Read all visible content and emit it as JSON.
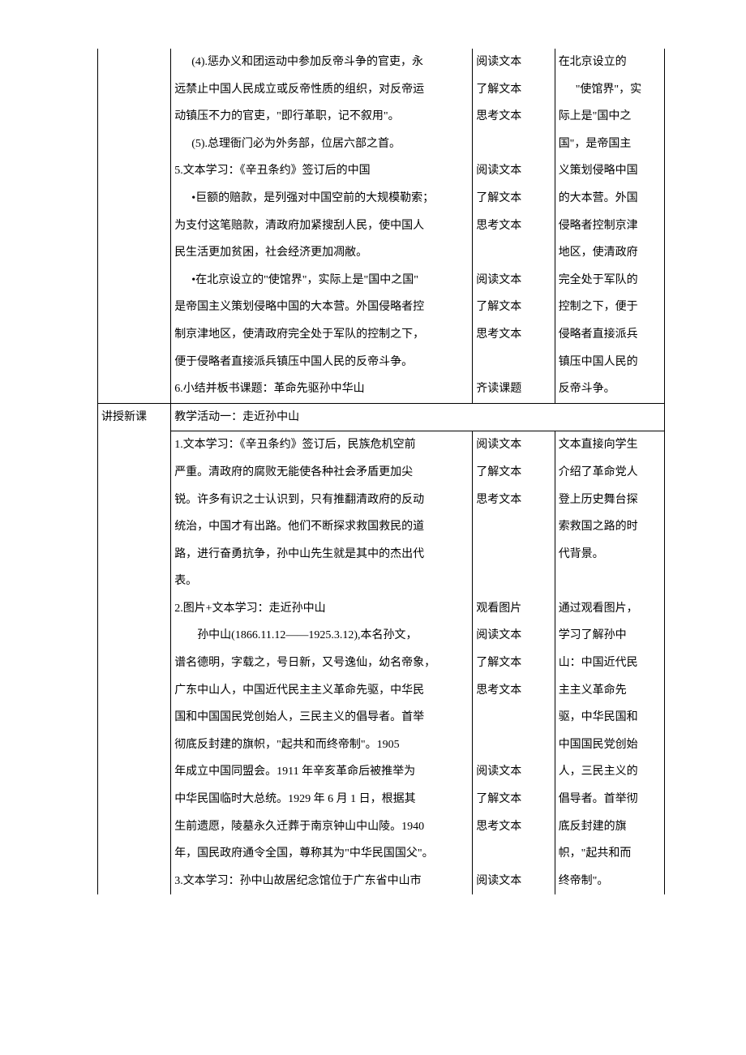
{
  "table": {
    "row1": {
      "col1": "",
      "col2_lines": [
        {
          "text": "(4).惩办义和团运动中参加反帝斗争的官吏，永",
          "cls": "indent1"
        },
        {
          "text": "远禁止中国人民成立或反帝性质的组织，对反帝运"
        },
        {
          "text": "动镇压不力的官吏，\"即行革职，记不叙用\"。"
        },
        {
          "text": "(5).总理衙门必为外务部，位居六部之首。",
          "cls": "indent1"
        },
        {
          "text": "5.文本学习：《辛丑条约》签订后的中国"
        },
        {
          "text": "•巨额的赔款，是列强对中国空前的大规模勒索；",
          "cls": "indent1"
        },
        {
          "text": "为支付这笔赔款，清政府加紧搜刮人民，使中国人"
        },
        {
          "text": "民生活更加贫困，社会经济更加凋敝。"
        },
        {
          "text": "•在北京设立的\"使馆界\"，实际上是\"国中之国\"",
          "cls": "indent1"
        },
        {
          "text": "是帝国主义策划侵略中国的大本营。外国侵略者控"
        },
        {
          "text": "制京津地区，使清政府完全处于军队的控制之下，"
        },
        {
          "text": "便于侵略者直接派兵镇压中国人民的反帝斗争。"
        },
        {
          "text": "6.小结并板书课题：革命先驱孙中华山"
        }
      ],
      "col3_lines": [
        "阅读文本",
        "了解文本",
        "思考文本",
        "",
        "阅读文本",
        "了解文本",
        "思考文本",
        "",
        "阅读文本",
        "了解文本",
        "思考文本",
        "",
        "齐读课题"
      ],
      "col4_lines": [
        "在北京设立的",
        "\"使馆界\"，实",
        "际上是\"国中之",
        "国\"，是帝国主",
        "义策划侵略中国",
        "的大本营。外国",
        "侵略者控制京津",
        "地区，使清政府",
        "完全处于军队的",
        "控制之下，便于",
        "侵略者直接派兵",
        "镇压中国人民的",
        "反帝斗争。"
      ]
    },
    "row2": {
      "col1": "讲授新课",
      "col2": "教学活动一：走近孙中山"
    },
    "row3": {
      "col1": "",
      "col2_lines": [
        {
          "text": "1.文本学习：《辛丑条约》签订后，民族危机空前"
        },
        {
          "text": "严重。清政府的腐败无能使各种社会矛盾更加尖"
        },
        {
          "text": "锐。许多有识之士认识到，只有推翻清政府的反动"
        },
        {
          "text": "统治，中国才有出路。他们不断探求救国救民的道"
        },
        {
          "text": "路，进行奋勇抗争，孙中山先生就是其中的杰出代"
        },
        {
          "text": "表。"
        },
        {
          "text": "2.图片+文本学习：走近孙中山"
        },
        {
          "text": "孙中山(1866.11.12——1925.3.12),本名孙文，",
          "cls": "indent"
        },
        {
          "text": "谱名德明，字载之，号日新，又号逸仙，幼名帝象，"
        },
        {
          "text": "广东中山人，中国近代民主主义革命先驱，中华民"
        },
        {
          "text": "国和中国国民党创始人，三民主义的倡导者。首举"
        },
        {
          "text": "彻底反封建的旗帜，\"起共和而终帝制\"。1905"
        },
        {
          "text": "年成立中国同盟会。1911 年辛亥革命后被推举为"
        },
        {
          "text": "中华民国临时大总统。1929 年 6 月 1 日，根据其"
        },
        {
          "text": "生前遗愿，陵墓永久迁葬于南京钟山中山陵。1940"
        },
        {
          "text": "年，国民政府通令全国，尊称其为\"中华民国国父\"。"
        },
        {
          "text": "3.文本学习：孙中山故居纪念馆位于广东省中山市"
        }
      ],
      "col3_lines": [
        "阅读文本",
        "了解文本",
        "思考文本",
        "",
        "",
        "",
        "观看图片",
        "阅读文本",
        "了解文本",
        "思考文本",
        "",
        "",
        "阅读文本",
        "了解文本",
        "思考文本",
        "",
        "阅读文本"
      ],
      "col4_lines": [
        "文本直接向学生",
        "介绍了革命党人",
        "登上历史舞台探",
        "索救国之路的时",
        "代背景。",
        "",
        "通过观看图片，",
        "学习了解孙中",
        "山：中国近代民",
        "主主义革命先",
        "驱，中华民国和",
        "中国国民党创始",
        "人，三民主义的",
        "倡导者。首举彻",
        "底反封建的旗",
        "帜，\"起共和而",
        "终帝制\"。"
      ]
    }
  }
}
